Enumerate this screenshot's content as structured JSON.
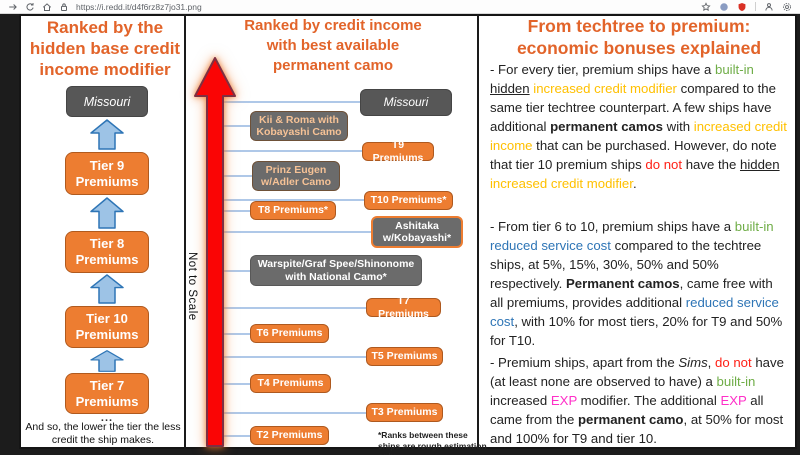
{
  "browser": {
    "url": "https://i.redd.it/d4f6rz8z7jo31.png",
    "toolbar_icons": [
      "forward-icon",
      "refresh-icon",
      "home-icon",
      "lock-icon"
    ],
    "action_icons": [
      "favorites-add-icon",
      "extension-icon",
      "shield-icon",
      "profile-icon",
      "settings-icon"
    ]
  },
  "left_panel": {
    "title_lines": [
      "Ranked by the",
      "hidden base credit",
      "income modifier"
    ],
    "top_node": "Missouri",
    "nodes": [
      "Tier 9\nPremiums",
      "Tier 8\nPremiums",
      "Tier 10\nPremiums",
      "Tier 7\nPremiums"
    ],
    "ellipsis": "...",
    "caption": "And so, the lower the tier the less credit the ship makes."
  },
  "middle_panel": {
    "title_lines": [
      "Ranked by credit income",
      "with best available",
      "permanent camo"
    ],
    "axis_label": "Not to Scale",
    "nodes": [
      {
        "label": "Missouri",
        "variant": "dark"
      },
      {
        "label": "Kii & Roma with\nKobayashi Camo",
        "variant": "gray-orange"
      },
      {
        "label": "T9 Premiums",
        "variant": "orange"
      },
      {
        "label": "Prinz Eugen\nw/Adler Camo",
        "variant": "gray-orange"
      },
      {
        "label": "T10 Premiums*",
        "variant": "orange"
      },
      {
        "label": "T8 Premiums*",
        "variant": "orange"
      },
      {
        "label": "Ashitaka\nw/Kobayashi*",
        "variant": "gray-orange-border"
      },
      {
        "label": "Warspite/Graf Spee/Shinonome\nwith National Camo*",
        "variant": "gray"
      },
      {
        "label": "T7 Premiums",
        "variant": "orange"
      },
      {
        "label": "T6 Premiums",
        "variant": "orange"
      },
      {
        "label": "T5 Premiums",
        "variant": "orange"
      },
      {
        "label": "T4 Premiums",
        "variant": "orange"
      },
      {
        "label": "T3 Premiums",
        "variant": "orange"
      },
      {
        "label": "T2 Premiums",
        "variant": "orange"
      }
    ],
    "footnote": "*Ranks between these ships are rough estimation only."
  },
  "right_panel": {
    "title_lines": [
      "From techtree to premium:",
      "economic bonuses explained"
    ],
    "paragraphs": {
      "p1": [
        {
          "t": "- For every tier, premium ships have a "
        },
        {
          "t": "built-in",
          "s": "green"
        },
        {
          "t": " "
        },
        {
          "t": "hidden",
          "s": "underline"
        },
        {
          "t": " "
        },
        {
          "t": "increased credit modifier",
          "s": "gold"
        },
        {
          "t": " compared to the same tier techtree counterpart. A few ships have additional "
        },
        {
          "t": "permanent camos",
          "s": "bold"
        },
        {
          "t": " with "
        },
        {
          "t": "increased credit income",
          "s": "gold"
        },
        {
          "t": " that can be purchased. However, do note that tier 10 premium ships "
        },
        {
          "t": "do not",
          "s": "red"
        },
        {
          "t": " have the "
        },
        {
          "t": "hidden",
          "s": "underline"
        },
        {
          "t": " "
        },
        {
          "t": "increased credit modifier",
          "s": "gold"
        },
        {
          "t": "."
        }
      ],
      "p2": [
        {
          "t": "- From tier 6 to 10, premium ships have a "
        },
        {
          "t": "built-in",
          "s": "green"
        },
        {
          "t": " "
        },
        {
          "t": "reduced service cost",
          "s": "blue"
        },
        {
          "t": " compared to the techtree ships, at 5%, 15%, 30%, 50% and 50% respectively. "
        },
        {
          "t": "Permanent camos",
          "s": "bold"
        },
        {
          "t": ", came free with all premiums, provides additional "
        },
        {
          "t": "reduced service cost",
          "s": "blue"
        },
        {
          "t": ", with 10% for most tiers, 20% for T9 and 50% for T10."
        }
      ],
      "p3": [
        {
          "t": "- Premium ships, apart from the "
        },
        {
          "t": "Sims",
          "s": "italic"
        },
        {
          "t": ", "
        },
        {
          "t": "do not",
          "s": "red"
        },
        {
          "t": " have (at least none are observed to have) a "
        },
        {
          "t": "built-in",
          "s": "green"
        },
        {
          "t": " increased "
        },
        {
          "t": "EXP",
          "s": "magenta"
        },
        {
          "t": " modifier. The additional "
        },
        {
          "t": "EXP",
          "s": "magenta"
        },
        {
          "t": " all came from the "
        },
        {
          "t": "permanent camo",
          "s": "bold"
        },
        {
          "t": ", at 50% for most and 100% for T9 and tier 10."
        }
      ]
    }
  },
  "colors": {
    "heading_orange": "#e2642a",
    "box_orange": "#ed7d31",
    "box_gray": "#6b6b6b",
    "box_dark": "#575757",
    "arrow_blue_fill": "#9dc3e6",
    "arrow_blue_stroke": "#2e75b6",
    "arrow_red": "#fa0505",
    "connector_blue": "#afc8e8",
    "text_green": "#6fad47",
    "text_gold": "#ffc000",
    "text_blue": "#2e75b6",
    "text_red": "#ff2016",
    "text_magenta": "#ff2fc8"
  }
}
